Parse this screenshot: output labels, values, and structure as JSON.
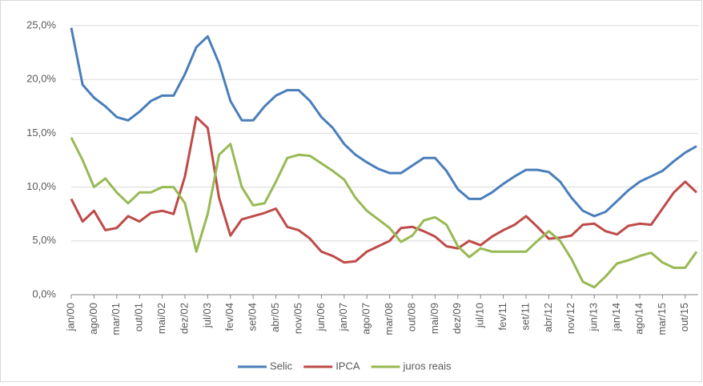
{
  "chart_data": {
    "type": "line",
    "categories": [
      "jan/00",
      null,
      "ago/00",
      null,
      "mar/01",
      null,
      "out/01",
      null,
      "mai/02",
      null,
      "dez/02",
      null,
      "jul/03",
      null,
      "fev/04",
      null,
      "set/04",
      null,
      "abr/05",
      null,
      "nov/05",
      null,
      "jun/06",
      null,
      "jan/07",
      null,
      "ago/07",
      null,
      "mar/08",
      null,
      "out/08",
      null,
      "mai/09",
      null,
      "dez/09",
      null,
      "jul/10",
      null,
      "fev/11",
      null,
      "set/11",
      null,
      "abr/12",
      null,
      "nov/12",
      null,
      "jun/13",
      null,
      "jan/14",
      null,
      "ago/14",
      null,
      "mar/15",
      null,
      "out/15",
      null
    ],
    "series": [
      {
        "name": "Selic",
        "color": "#4a7ebb",
        "values": [
          24.8,
          19.5,
          18.3,
          17.5,
          16.5,
          16.2,
          17.0,
          18.0,
          18.5,
          18.5,
          20.5,
          23.0,
          24.0,
          21.5,
          18.0,
          16.2,
          16.2,
          17.5,
          18.5,
          19.0,
          19.0,
          18.0,
          16.5,
          15.5,
          14.0,
          13.0,
          12.3,
          11.7,
          11.3,
          11.3,
          12.0,
          12.7,
          12.7,
          11.5,
          9.8,
          8.9,
          8.9,
          9.5,
          10.3,
          11.0,
          11.6,
          11.6,
          11.4,
          10.5,
          9.0,
          7.8,
          7.3,
          7.7,
          8.7,
          9.7,
          10.5,
          11.0,
          11.5,
          12.4,
          13.2,
          13.8
        ]
      },
      {
        "name": "IPCA",
        "color": "#be4b48",
        "values": [
          8.9,
          6.8,
          7.8,
          6.0,
          6.2,
          7.3,
          6.8,
          7.6,
          7.8,
          7.5,
          11.0,
          16.5,
          15.5,
          9.0,
          5.5,
          7.0,
          7.3,
          7.6,
          8.0,
          6.3,
          6.0,
          5.2,
          4.0,
          3.6,
          3.0,
          3.1,
          4.0,
          4.5,
          5.0,
          6.2,
          6.3,
          5.9,
          5.4,
          4.5,
          4.3,
          5.0,
          4.6,
          5.4,
          6.0,
          6.5,
          7.3,
          6.3,
          5.2,
          5.3,
          5.5,
          6.5,
          6.6,
          5.9,
          5.6,
          6.4,
          6.6,
          6.5,
          8.0,
          9.5,
          10.5,
          9.5
        ]
      },
      {
        "name": "juros reais",
        "color": "#98b954",
        "values": [
          14.6,
          12.5,
          10.0,
          10.8,
          9.5,
          8.5,
          9.5,
          9.5,
          10.0,
          10.0,
          8.5,
          4.0,
          7.5,
          13.0,
          14.0,
          10.0,
          8.3,
          8.5,
          10.5,
          12.7,
          13.0,
          12.9,
          12.2,
          11.5,
          10.7,
          9.0,
          7.8,
          7.0,
          6.2,
          4.9,
          5.5,
          6.9,
          7.2,
          6.5,
          4.5,
          3.5,
          4.3,
          4.0,
          4.0,
          4.0,
          4.0,
          5.0,
          5.9,
          5.0,
          3.3,
          1.2,
          0.7,
          1.7,
          2.9,
          3.2,
          3.6,
          3.9,
          3.0,
          2.5,
          2.5,
          4.0
        ]
      }
    ],
    "ylim": [
      0,
      25
    ],
    "yticks": [
      {
        "value": 0,
        "label": "0,0%"
      },
      {
        "value": 5,
        "label": "5,0%"
      },
      {
        "value": 10,
        "label": "10,0%"
      },
      {
        "value": 15,
        "label": "15,0%"
      },
      {
        "value": 20,
        "label": "20,0%"
      },
      {
        "value": 25,
        "label": "25,0%"
      }
    ],
    "grid": true,
    "legend": "bottom"
  }
}
